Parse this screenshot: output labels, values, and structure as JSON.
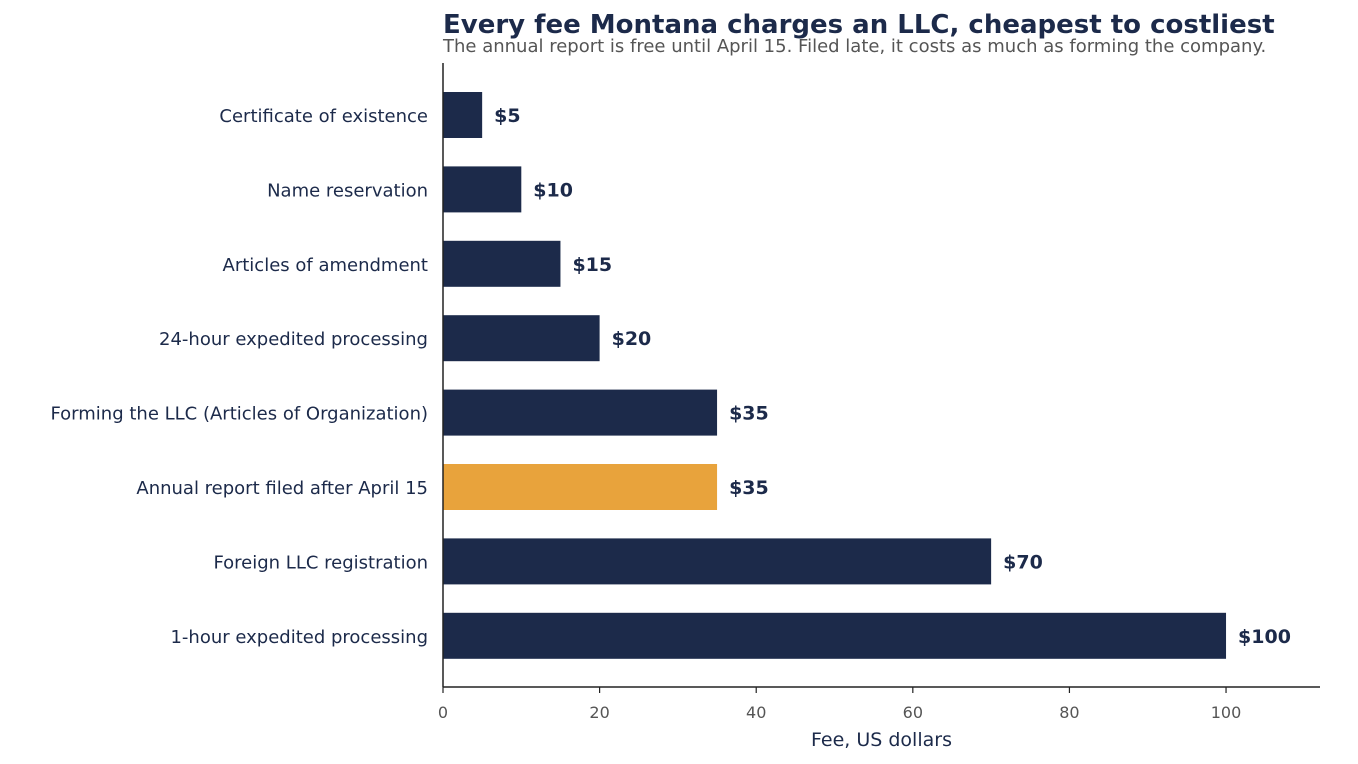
{
  "title": "Every fee Montana charges an LLC, cheapest to costliest",
  "subtitle": "The annual report is free until April 15. Filed late, it costs as much as forming the company.",
  "chart_data": {
    "type": "bar",
    "orientation": "horizontal",
    "categories": [
      "Certificate of existence",
      "Name reservation",
      "Articles of amendment",
      "24-hour expedited processing",
      "Forming the LLC (Articles of Organization)",
      "Annual report filed after April 15",
      "Foreign LLC registration",
      "1-hour expedited processing"
    ],
    "values": [
      5,
      10,
      15,
      20,
      35,
      35,
      70,
      100
    ],
    "value_labels": [
      "$5",
      "$10",
      "$15",
      "$20",
      "$35",
      "$35",
      "$70",
      "$100"
    ],
    "highlight_index": 5,
    "xlabel": "Fee, US dollars",
    "ylabel": "",
    "xlim": [
      0,
      112
    ],
    "xticks": [
      0,
      20,
      40,
      60,
      80,
      100
    ],
    "grid": false,
    "colors": {
      "bar": "#1c2a4a",
      "highlight": "#e8a33c",
      "text": "#1c2a4a",
      "tick": "#555555",
      "axis": "#222222"
    }
  }
}
